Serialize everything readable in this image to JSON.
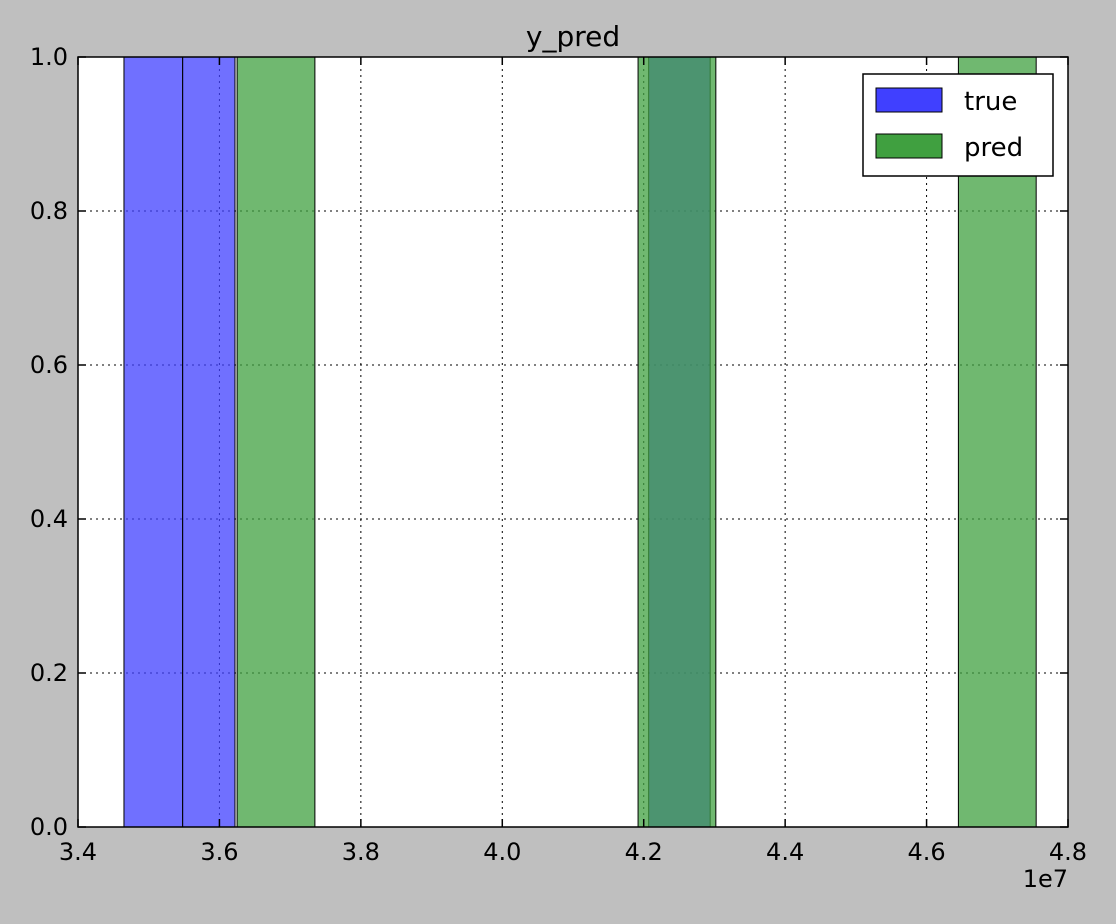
{
  "chart_data": {
    "type": "bar",
    "title": "y_pred",
    "xlabel": "",
    "ylabel": "",
    "x_offset_label": "1e7",
    "xlim": [
      3.4,
      4.8
    ],
    "ylim": [
      0.0,
      1.0
    ],
    "x_ticks": [
      "3.4",
      "3.6",
      "3.8",
      "4.0",
      "4.2",
      "4.4",
      "4.6",
      "4.8"
    ],
    "y_ticks": [
      "0.0",
      "0.2",
      "0.4",
      "0.6",
      "0.8",
      "1.0"
    ],
    "grid": true,
    "legend_position": "top-right",
    "series": [
      {
        "name": "true",
        "color": "#4040ff",
        "bins": [
          {
            "x0": 3.465,
            "x1": 3.548,
            "value": 1.0
          },
          {
            "x0": 3.548,
            "x1": 3.622,
            "value": 1.0
          },
          {
            "x0": 4.207,
            "x1": 4.294,
            "value": 1.0
          }
        ]
      },
      {
        "name": "pred",
        "color": "#40a040",
        "bins": [
          {
            "x0": 3.625,
            "x1": 3.735,
            "value": 1.0
          },
          {
            "x0": 4.192,
            "x1": 4.302,
            "value": 1.0
          },
          {
            "x0": 4.645,
            "x1": 4.755,
            "value": 1.0
          }
        ]
      }
    ]
  }
}
